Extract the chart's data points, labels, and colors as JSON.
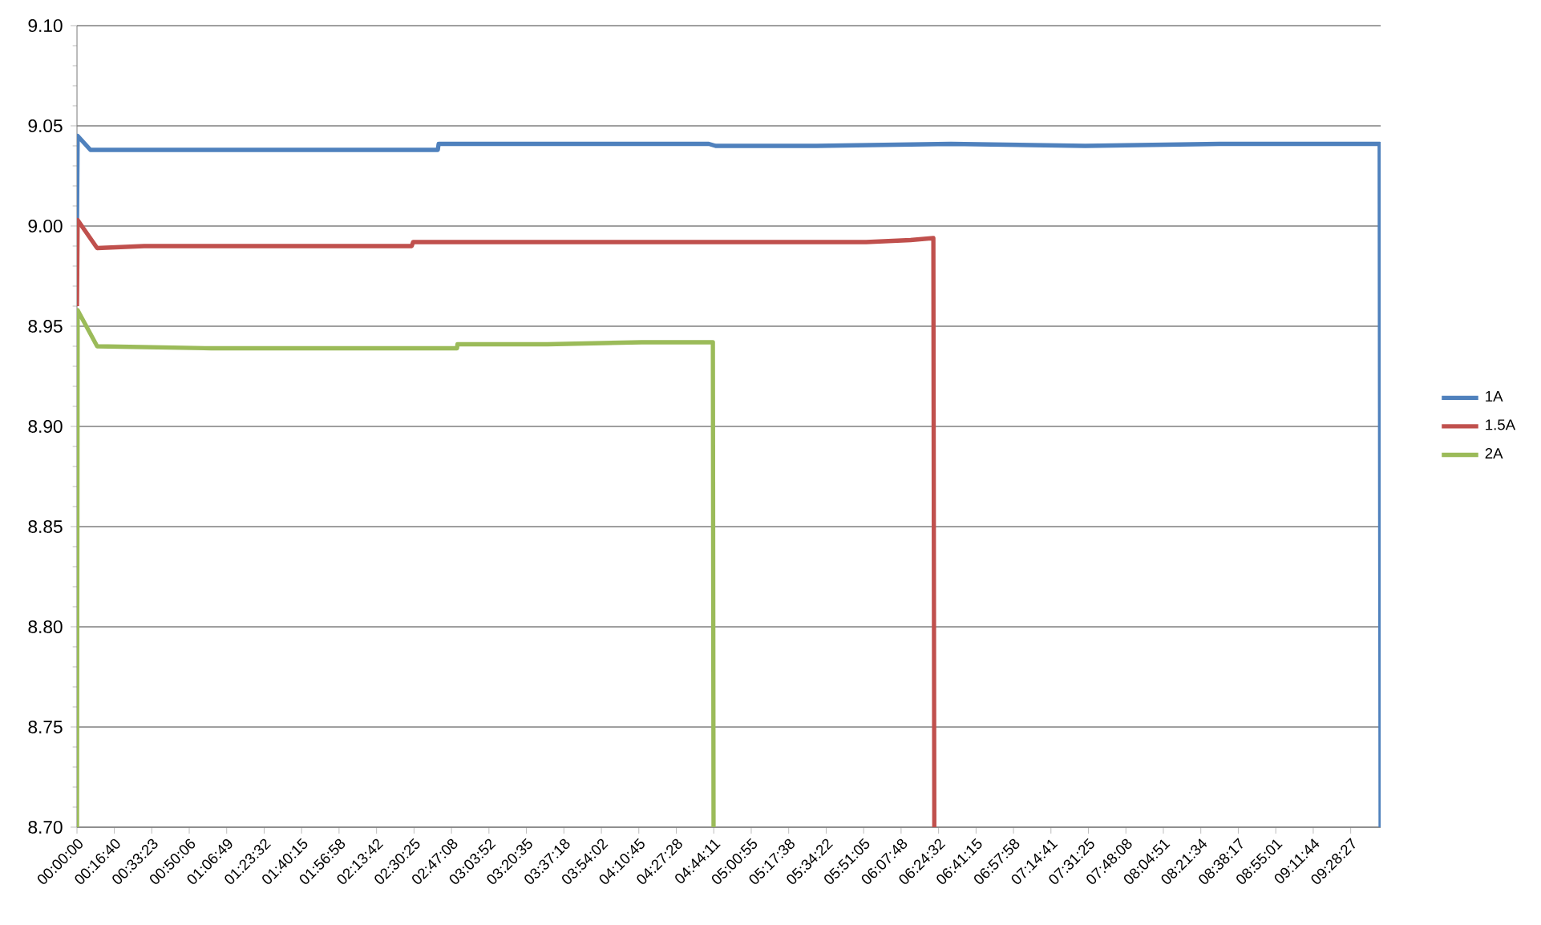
{
  "chart_data": {
    "type": "line",
    "xlim": [
      0,
      9.697
    ],
    "ylim": [
      8.7,
      9.1
    ],
    "xticks": [
      {
        "value": 0,
        "label": "00:00:00"
      },
      {
        "value": 0.2778,
        "label": "00:16:40"
      },
      {
        "value": 0.5564,
        "label": "00:33:23"
      },
      {
        "value": 0.835,
        "label": "00:50:06"
      },
      {
        "value": 1.1136,
        "label": "01:06:49"
      },
      {
        "value": 1.3922,
        "label": "01:23:32"
      },
      {
        "value": 1.6708,
        "label": "01:40:15"
      },
      {
        "value": 1.9494,
        "label": "01:56:58"
      },
      {
        "value": 2.2283,
        "label": "02:13:42"
      },
      {
        "value": 2.5069,
        "label": "02:30:25"
      },
      {
        "value": 2.7856,
        "label": "02:47:08"
      },
      {
        "value": 3.0644,
        "label": "03:03:52"
      },
      {
        "value": 3.3431,
        "label": "03:20:35"
      },
      {
        "value": 3.6217,
        "label": "03:37:18"
      },
      {
        "value": 3.9006,
        "label": "03:54:02"
      },
      {
        "value": 4.1792,
        "label": "04:10:45"
      },
      {
        "value": 4.4578,
        "label": "04:27:28"
      },
      {
        "value": 4.7364,
        "label": "04:44:11"
      },
      {
        "value": 5.0153,
        "label": "05:00:55"
      },
      {
        "value": 5.2939,
        "label": "05:17:38"
      },
      {
        "value": 5.5728,
        "label": "05:34:22"
      },
      {
        "value": 5.8514,
        "label": "05:51:05"
      },
      {
        "value": 6.13,
        "label": "06:07:48"
      },
      {
        "value": 6.4089,
        "label": "06:24:32"
      },
      {
        "value": 6.6875,
        "label": "06:41:15"
      },
      {
        "value": 6.9661,
        "label": "06:57:58"
      },
      {
        "value": 7.2447,
        "label": "07:14:41"
      },
      {
        "value": 7.5236,
        "label": "07:31:25"
      },
      {
        "value": 7.8022,
        "label": "07:48:08"
      },
      {
        "value": 8.0808,
        "label": "08:04:51"
      },
      {
        "value": 8.3594,
        "label": "08:21:34"
      },
      {
        "value": 8.6381,
        "label": "08:38:17"
      },
      {
        "value": 8.9169,
        "label": "08:55:01"
      },
      {
        "value": 9.1956,
        "label": "09:11:44"
      },
      {
        "value": 9.4742,
        "label": "09:28:27"
      }
    ],
    "yticks": [
      {
        "value": 8.7,
        "label": "8.70"
      },
      {
        "value": 8.75,
        "label": "8.75"
      },
      {
        "value": 8.8,
        "label": "8.80"
      },
      {
        "value": 8.85,
        "label": "8.85"
      },
      {
        "value": 8.9,
        "label": "8.90"
      },
      {
        "value": 8.95,
        "label": "8.95"
      },
      {
        "value": 9.0,
        "label": "9.00"
      },
      {
        "value": 9.05,
        "label": "9.05"
      },
      {
        "value": 9.1,
        "label": "9.10"
      }
    ],
    "grid": "y",
    "legend": "right",
    "marker": "none",
    "line_style": "solid",
    "series": [
      {
        "name": "1A",
        "color": "#4f81bd",
        "x": [
          0,
          0.005,
          0.1,
          0.5,
          1.5,
          2.684,
          2.69,
          3.5,
          4.7,
          4.75,
          5.5,
          6.5,
          7.5,
          8.5,
          9.69,
          9.697
        ],
        "values": [
          9.0,
          9.045,
          9.038,
          9.038,
          9.038,
          9.038,
          9.041,
          9.041,
          9.041,
          9.04,
          9.04,
          9.041,
          9.04,
          9.041,
          9.041,
          8.7
        ]
      },
      {
        "name": "1.5A",
        "color": "#c0504d",
        "x": [
          0,
          0.005,
          0.15,
          0.5,
          1.5,
          2.49,
          2.5,
          4.0,
          5.87,
          6.2,
          6.37,
          6.377
        ],
        "values": [
          8.96,
          9.003,
          8.989,
          8.99,
          8.99,
          8.99,
          8.992,
          8.992,
          8.992,
          8.993,
          8.994,
          8.7
        ]
      },
      {
        "name": "2A",
        "color": "#9bbb59",
        "x": [
          0,
          0.005,
          0.15,
          1.0,
          2.0,
          2.827,
          2.83,
          3.5,
          4.2,
          4.73,
          4.735
        ],
        "values": [
          8.7,
          8.958,
          8.94,
          8.939,
          8.939,
          8.939,
          8.941,
          8.941,
          8.942,
          8.942,
          8.7
        ]
      }
    ]
  }
}
